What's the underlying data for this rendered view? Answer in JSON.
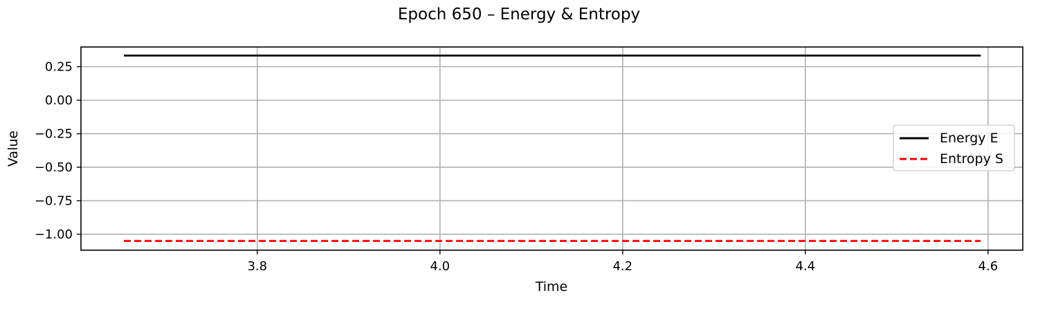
{
  "chart_data": {
    "type": "line",
    "title": "Epoch 650 – Energy & Entropy",
    "xlabel": "Time",
    "ylabel": "Value",
    "xlim": [
      3.607,
      4.638
    ],
    "ylim": [
      -1.119,
      0.397
    ],
    "xticks": [
      {
        "value": 3.8,
        "label": "3.8"
      },
      {
        "value": 4.0,
        "label": "4.0"
      },
      {
        "value": 4.2,
        "label": "4.2"
      },
      {
        "value": 4.4,
        "label": "4.4"
      },
      {
        "value": 4.6,
        "label": "4.6"
      }
    ],
    "yticks": [
      {
        "value": 0.25,
        "label": "0.25"
      },
      {
        "value": 0.0,
        "label": "0.00"
      },
      {
        "value": -0.25,
        "label": "−0.25"
      },
      {
        "value": -0.5,
        "label": "−0.50"
      },
      {
        "value": -0.75,
        "label": "−0.75"
      },
      {
        "value": -1.0,
        "label": "−1.00"
      }
    ],
    "grid": true,
    "legend_position": "center-right",
    "series": [
      {
        "name": "Energy E",
        "color": "#000000",
        "style": "solid",
        "x": [
          3.654,
          4.592
        ],
        "y": [
          0.333,
          0.333
        ]
      },
      {
        "name": "Entropy S",
        "color": "#ff0000",
        "style": "dashed",
        "x": [
          3.654,
          4.592
        ],
        "y": [
          -1.05,
          -1.05
        ]
      }
    ]
  }
}
